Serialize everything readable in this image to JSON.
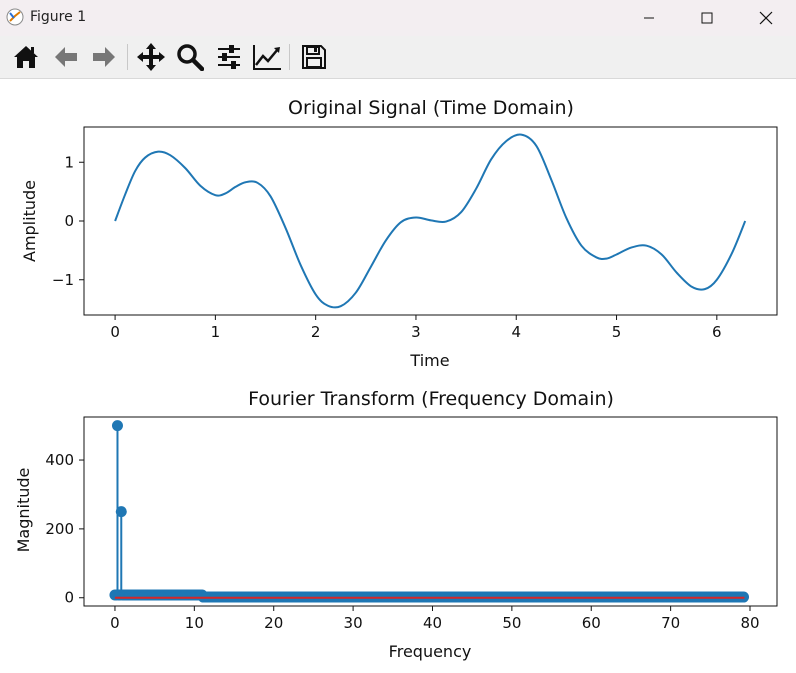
{
  "window": {
    "title": "Figure 1"
  },
  "toolbar": {
    "buttons": [
      {
        "name": "home-icon",
        "tip": "Reset original view"
      },
      {
        "name": "back-arrow-icon",
        "tip": "Back"
      },
      {
        "name": "forward-arrow-icon",
        "tip": "Forward"
      },
      {
        "name": "pan-move-icon",
        "tip": "Pan"
      },
      {
        "name": "zoom-magnifier-icon",
        "tip": "Zoom"
      },
      {
        "name": "configure-subplots-icon",
        "tip": "Subplots"
      },
      {
        "name": "edit-axis-icon",
        "tip": "Customize"
      },
      {
        "name": "save-floppy-icon",
        "tip": "Save"
      }
    ]
  },
  "chart_data": [
    {
      "type": "line",
      "title": "Original Signal (Time Domain)",
      "xlabel": "Time",
      "ylabel": "Amplitude",
      "xlim": [
        -0.31,
        6.6
      ],
      "ylim": [
        -1.6,
        1.6
      ],
      "xticks": [
        "0",
        "1",
        "2",
        "3",
        "4",
        "5",
        "6"
      ],
      "xtick_values": [
        0,
        1,
        2,
        3,
        4,
        5,
        6
      ],
      "yticks": [
        "−1",
        "0",
        "1"
      ],
      "ytick_values": [
        -1,
        0,
        1
      ],
      "series": [
        {
          "color": "#1f77b4",
          "x": [
            0,
            0.1,
            0.2,
            0.3,
            0.43,
            0.55,
            0.7,
            0.85,
            1.0,
            1.1,
            1.2,
            1.3,
            1.42,
            1.55,
            1.7,
            1.85,
            2.0,
            2.12,
            2.25,
            2.4,
            2.55,
            2.7,
            2.85,
            3.0,
            3.15,
            3.3,
            3.45,
            3.6,
            3.75,
            3.9,
            4.05,
            4.2,
            4.35,
            4.5,
            4.65,
            4.8,
            4.9,
            5.0,
            5.15,
            5.3,
            5.45,
            5.6,
            5.75,
            5.88,
            6.0,
            6.15,
            6.283
          ],
          "y": [
            0,
            0.45,
            0.85,
            1.08,
            1.18,
            1.12,
            0.9,
            0.6,
            0.44,
            0.47,
            0.58,
            0.66,
            0.65,
            0.42,
            -0.12,
            -0.75,
            -1.25,
            -1.44,
            -1.45,
            -1.22,
            -0.78,
            -0.33,
            -0.02,
            0.06,
            0.01,
            -0.01,
            0.15,
            0.55,
            1.05,
            1.36,
            1.47,
            1.28,
            0.7,
            0.05,
            -0.42,
            -0.62,
            -0.64,
            -0.57,
            -0.45,
            -0.42,
            -0.57,
            -0.88,
            -1.12,
            -1.16,
            -1.0,
            -0.55,
            0
          ]
        }
      ]
    },
    {
      "type": "stem",
      "title": "Fourier Transform (Frequency Domain)",
      "xlabel": "Frequency",
      "ylabel": "Magnitude",
      "xlim": [
        -3.9,
        83.4
      ],
      "ylim": [
        -24,
        525
      ],
      "xticks": [
        "0",
        "10",
        "20",
        "30",
        "40",
        "50",
        "60",
        "70",
        "80"
      ],
      "xtick_values": [
        0,
        10,
        20,
        30,
        40,
        50,
        60,
        70,
        80
      ],
      "yticks": [
        "0",
        "200",
        "400"
      ],
      "ytick_values": [
        0,
        200,
        400
      ],
      "series": [
        {
          "color": "#1f77b4",
          "baseline_color": "#d62728",
          "freq_step": 0.159,
          "freq_max": 79.3,
          "peaks": [
            {
              "x": 0.32,
              "y": 500
            },
            {
              "x": 0.8,
              "y": 250
            }
          ],
          "near_zero_level_low": 8,
          "near_zero_level_low_until": 11,
          "near_zero_level": 2
        }
      ]
    }
  ]
}
